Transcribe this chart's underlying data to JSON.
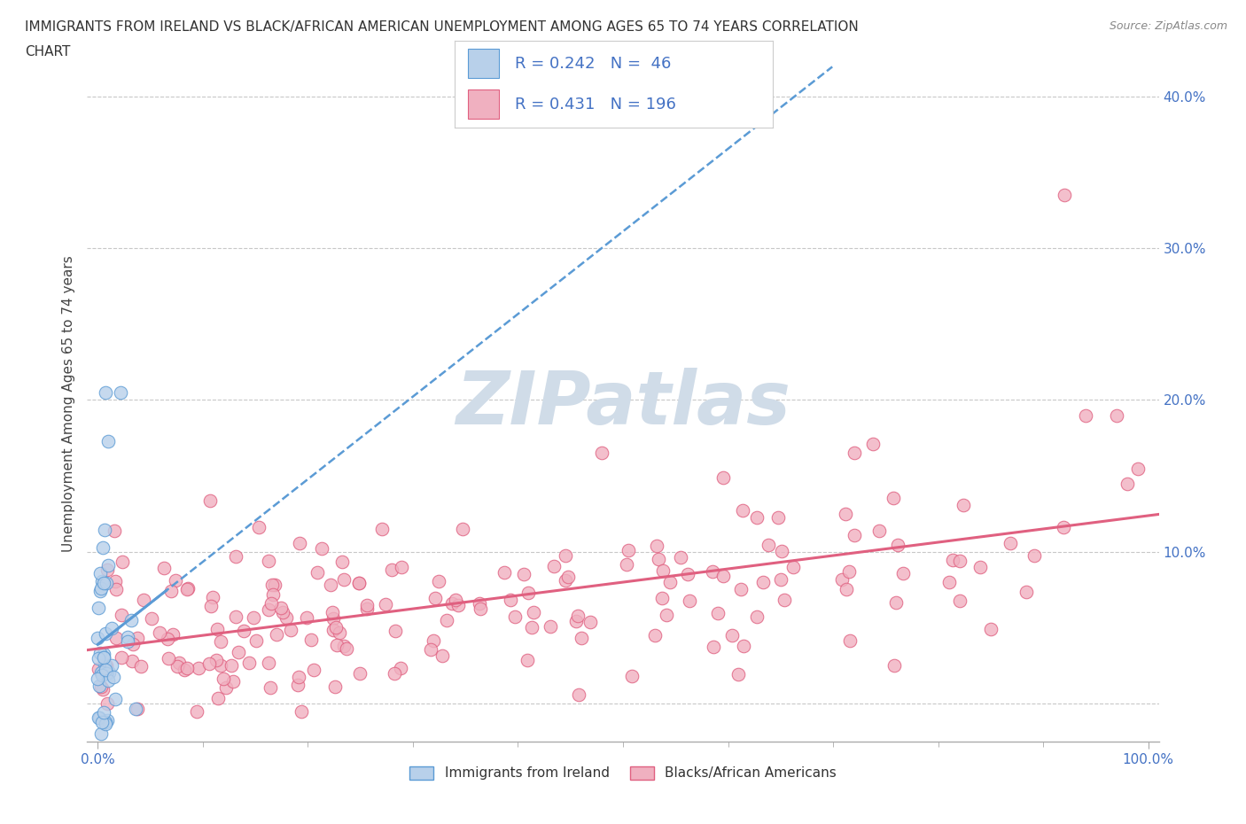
{
  "title_line1": "IMMIGRANTS FROM IRELAND VS BLACK/AFRICAN AMERICAN UNEMPLOYMENT AMONG AGES 65 TO 74 YEARS CORRELATION",
  "title_line2": "CHART",
  "source": "Source: ZipAtlas.com",
  "ylabel": "Unemployment Among Ages 65 to 74 years",
  "xlim": [
    -0.01,
    1.01
  ],
  "ylim": [
    -0.025,
    0.42
  ],
  "y_ticks": [
    0.0,
    0.1,
    0.2,
    0.3,
    0.4
  ],
  "y_tick_labels": [
    "",
    "10.0%",
    "20.0%",
    "30.0%",
    "40.0%"
  ],
  "grid_color": "#c8c8c8",
  "background_color": "#ffffff",
  "watermark_text": "ZIPatlas",
  "watermark_color": "#d0dce8",
  "tick_label_color": "#4472c4",
  "series": [
    {
      "name": "Immigrants from Ireland",
      "R": 0.242,
      "N": 46,
      "color_fill": "#b8d0ea",
      "color_edge": "#5b9bd5",
      "line_color": "#5b9bd5",
      "line_style": "--"
    },
    {
      "name": "Blacks/African Americans",
      "R": 0.431,
      "N": 196,
      "color_fill": "#f0b0c0",
      "color_edge": "#e06080",
      "line_color": "#e06080",
      "line_style": "-"
    }
  ]
}
